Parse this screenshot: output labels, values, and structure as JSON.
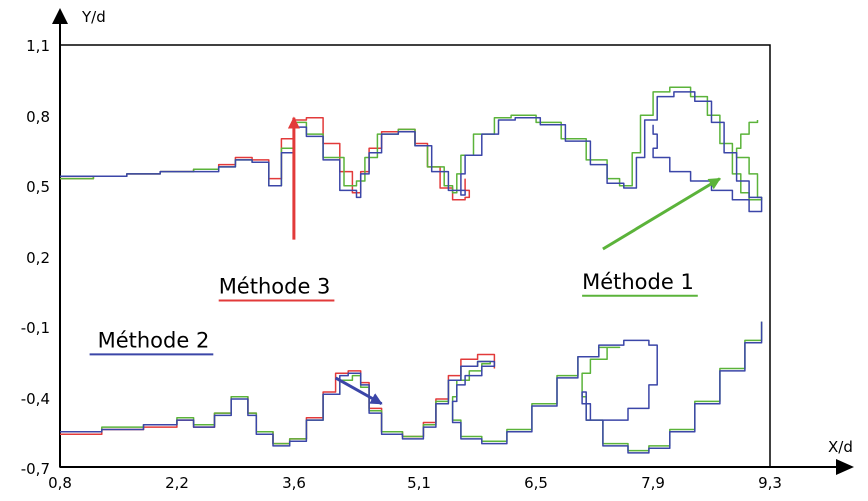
{
  "chart_data": {
    "type": "line",
    "xlabel": "X/d",
    "ylabel": "Y/d",
    "xlim": [
      0.8,
      9.3
    ],
    "ylim": [
      -0.7,
      1.1
    ],
    "x_ticks": [
      "0,8",
      "2,2",
      "3,6",
      "5,1",
      "6,5",
      "7,9",
      "9,3"
    ],
    "x_tick_values": [
      0.8,
      2.2,
      3.6,
      5.1,
      6.5,
      7.9,
      9.3
    ],
    "y_ticks": [
      "1,1",
      "0,8",
      "0,5",
      "0,2",
      "-0,1",
      "-0,4",
      "-0,7"
    ],
    "y_tick_values": [
      1.1,
      0.8,
      0.5,
      0.2,
      -0.1,
      -0.4,
      -0.7
    ],
    "grid": false,
    "series": [
      {
        "name": "Méthode 1",
        "color": "#5bb33a",
        "upper": [
          [
            0.8,
            0.53
          ],
          [
            1.2,
            0.54
          ],
          [
            1.6,
            0.55
          ],
          [
            2.0,
            0.56
          ],
          [
            2.4,
            0.57
          ],
          [
            2.7,
            0.58
          ],
          [
            2.9,
            0.61
          ],
          [
            3.1,
            0.6
          ],
          [
            3.3,
            0.5
          ],
          [
            3.45,
            0.66
          ],
          [
            3.6,
            0.77
          ],
          [
            3.75,
            0.72
          ],
          [
            3.95,
            0.62
          ],
          [
            4.2,
            0.5
          ],
          [
            4.35,
            0.52
          ],
          [
            4.45,
            0.62
          ],
          [
            4.6,
            0.72
          ],
          [
            4.85,
            0.74
          ],
          [
            5.05,
            0.67
          ],
          [
            5.2,
            0.58
          ],
          [
            5.4,
            0.5
          ],
          [
            5.5,
            0.47
          ],
          [
            5.55,
            0.55
          ],
          [
            5.6,
            0.63
          ],
          [
            5.75,
            0.72
          ],
          [
            6.0,
            0.79
          ],
          [
            6.2,
            0.8
          ],
          [
            6.5,
            0.77
          ],
          [
            6.8,
            0.7
          ],
          [
            7.1,
            0.61
          ],
          [
            7.35,
            0.53
          ],
          [
            7.5,
            0.5
          ],
          [
            7.65,
            0.64
          ],
          [
            7.75,
            0.8
          ],
          [
            7.9,
            0.9
          ],
          [
            8.1,
            0.92
          ],
          [
            8.35,
            0.88
          ],
          [
            8.55,
            0.8
          ],
          [
            8.7,
            0.68
          ],
          [
            8.85,
            0.55
          ],
          [
            8.95,
            0.47
          ],
          [
            9.05,
            0.44
          ],
          [
            9.2,
            0.45
          ],
          [
            9.15,
            0.55
          ],
          [
            9.05,
            0.62
          ],
          [
            8.9,
            0.66
          ],
          [
            8.95,
            0.72
          ],
          [
            9.05,
            0.77
          ],
          [
            9.15,
            0.78
          ]
        ],
        "lower": [
          [
            0.8,
            -0.55
          ],
          [
            1.3,
            -0.53
          ],
          [
            1.8,
            -0.52
          ],
          [
            2.2,
            -0.49
          ],
          [
            2.4,
            -0.52
          ],
          [
            2.65,
            -0.47
          ],
          [
            2.85,
            -0.4
          ],
          [
            3.05,
            -0.47
          ],
          [
            3.15,
            -0.55
          ],
          [
            3.35,
            -0.6
          ],
          [
            3.55,
            -0.58
          ],
          [
            3.75,
            -0.5
          ],
          [
            3.95,
            -0.39
          ],
          [
            4.15,
            -0.33
          ],
          [
            4.3,
            -0.31
          ],
          [
            4.4,
            -0.36
          ],
          [
            4.5,
            -0.46
          ],
          [
            4.65,
            -0.55
          ],
          [
            4.9,
            -0.57
          ],
          [
            5.15,
            -0.52
          ],
          [
            5.3,
            -0.42
          ],
          [
            5.45,
            -0.33
          ],
          [
            5.6,
            -0.27
          ],
          [
            5.8,
            -0.25
          ],
          [
            5.95,
            -0.26
          ],
          [
            5.85,
            -0.29
          ],
          [
            5.7,
            -0.33
          ],
          [
            5.55,
            -0.4
          ],
          [
            5.5,
            -0.5
          ],
          [
            5.6,
            -0.57
          ],
          [
            5.85,
            -0.59
          ],
          [
            6.15,
            -0.54
          ],
          [
            6.45,
            -0.43
          ],
          [
            6.75,
            -0.31
          ],
          [
            7.0,
            -0.23
          ],
          [
            7.25,
            -0.19
          ],
          [
            7.5,
            -0.19
          ],
          [
            7.35,
            -0.24
          ],
          [
            7.15,
            -0.3
          ],
          [
            7.05,
            -0.4
          ],
          [
            7.1,
            -0.5
          ],
          [
            7.3,
            -0.6
          ],
          [
            7.6,
            -0.63
          ],
          [
            7.85,
            -0.61
          ],
          [
            8.1,
            -0.54
          ],
          [
            8.4,
            -0.42
          ],
          [
            8.7,
            -0.28
          ],
          [
            9.0,
            -0.16
          ],
          [
            9.2,
            -0.08
          ]
        ]
      },
      {
        "name": "Méthode 2",
        "color": "#3b46a8",
        "upper": [
          [
            0.8,
            0.54
          ],
          [
            1.2,
            0.54
          ],
          [
            1.6,
            0.55
          ],
          [
            2.0,
            0.56
          ],
          [
            2.4,
            0.56
          ],
          [
            2.7,
            0.58
          ],
          [
            2.9,
            0.61
          ],
          [
            3.1,
            0.6
          ],
          [
            3.3,
            0.5
          ],
          [
            3.45,
            0.64
          ],
          [
            3.6,
            0.75
          ],
          [
            3.75,
            0.71
          ],
          [
            3.95,
            0.61
          ],
          [
            4.15,
            0.48
          ],
          [
            4.35,
            0.45
          ],
          [
            4.4,
            0.55
          ],
          [
            4.5,
            0.64
          ],
          [
            4.65,
            0.72
          ],
          [
            4.85,
            0.73
          ],
          [
            5.05,
            0.67
          ],
          [
            5.25,
            0.56
          ],
          [
            5.45,
            0.48
          ],
          [
            5.65,
            0.46
          ],
          [
            5.6,
            0.55
          ],
          [
            5.65,
            0.63
          ],
          [
            5.85,
            0.72
          ],
          [
            6.05,
            0.78
          ],
          [
            6.25,
            0.79
          ],
          [
            6.55,
            0.76
          ],
          [
            6.85,
            0.69
          ],
          [
            7.15,
            0.59
          ],
          [
            7.35,
            0.51
          ],
          [
            7.55,
            0.49
          ],
          [
            7.7,
            0.62
          ],
          [
            7.8,
            0.78
          ],
          [
            7.95,
            0.88
          ],
          [
            8.15,
            0.9
          ],
          [
            8.4,
            0.86
          ],
          [
            8.6,
            0.77
          ],
          [
            8.75,
            0.64
          ],
          [
            8.9,
            0.52
          ],
          [
            9.05,
            0.45
          ],
          [
            9.2,
            0.39
          ],
          [
            9.05,
            0.44
          ],
          [
            8.85,
            0.48
          ],
          [
            8.6,
            0.52
          ],
          [
            8.35,
            0.56
          ],
          [
            8.1,
            0.62
          ],
          [
            7.9,
            0.66
          ],
          [
            7.95,
            0.72
          ],
          [
            7.9,
            0.76
          ]
        ],
        "lower": [
          [
            0.8,
            -0.55
          ],
          [
            1.3,
            -0.54
          ],
          [
            1.8,
            -0.52
          ],
          [
            2.2,
            -0.5
          ],
          [
            2.4,
            -0.53
          ],
          [
            2.65,
            -0.48
          ],
          [
            2.85,
            -0.41
          ],
          [
            3.05,
            -0.48
          ],
          [
            3.15,
            -0.56
          ],
          [
            3.35,
            -0.61
          ],
          [
            3.55,
            -0.59
          ],
          [
            3.75,
            -0.5
          ],
          [
            3.95,
            -0.39
          ],
          [
            4.15,
            -0.31
          ],
          [
            4.25,
            -0.3
          ],
          [
            4.4,
            -0.35
          ],
          [
            4.5,
            -0.47
          ],
          [
            4.65,
            -0.56
          ],
          [
            4.9,
            -0.58
          ],
          [
            5.15,
            -0.53
          ],
          [
            5.3,
            -0.43
          ],
          [
            5.45,
            -0.33
          ],
          [
            5.6,
            -0.27
          ],
          [
            5.8,
            -0.25
          ],
          [
            6.0,
            -0.27
          ],
          [
            5.85,
            -0.31
          ],
          [
            5.65,
            -0.35
          ],
          [
            5.55,
            -0.42
          ],
          [
            5.5,
            -0.51
          ],
          [
            5.6,
            -0.58
          ],
          [
            5.85,
            -0.6
          ],
          [
            6.15,
            -0.55
          ],
          [
            6.45,
            -0.44
          ],
          [
            6.75,
            -0.32
          ],
          [
            7.0,
            -0.23
          ],
          [
            7.25,
            -0.18
          ],
          [
            7.55,
            -0.16
          ],
          [
            7.85,
            -0.18
          ],
          [
            7.95,
            -0.25
          ],
          [
            7.95,
            -0.35
          ],
          [
            7.85,
            -0.45
          ],
          [
            7.6,
            -0.5
          ],
          [
            7.35,
            -0.5
          ],
          [
            7.15,
            -0.43
          ],
          [
            7.05,
            -0.38
          ],
          [
            7.1,
            -0.5
          ],
          [
            7.3,
            -0.61
          ],
          [
            7.6,
            -0.64
          ],
          [
            7.85,
            -0.62
          ],
          [
            8.1,
            -0.55
          ],
          [
            8.4,
            -0.43
          ],
          [
            8.7,
            -0.29
          ],
          [
            9.0,
            -0.17
          ],
          [
            9.2,
            -0.08
          ]
        ]
      },
      {
        "name": "Méthode 3",
        "color": "#e23a3a",
        "upper": [
          [
            0.8,
            0.53
          ],
          [
            1.2,
            0.54
          ],
          [
            1.6,
            0.55
          ],
          [
            2.0,
            0.56
          ],
          [
            2.4,
            0.57
          ],
          [
            2.7,
            0.59
          ],
          [
            2.9,
            0.62
          ],
          [
            3.1,
            0.61
          ],
          [
            3.3,
            0.53
          ],
          [
            3.45,
            0.7
          ],
          [
            3.6,
            0.78
          ],
          [
            3.75,
            0.79
          ],
          [
            3.95,
            0.68
          ],
          [
            4.15,
            0.56
          ],
          [
            4.3,
            0.47
          ],
          [
            4.4,
            0.56
          ],
          [
            4.5,
            0.66
          ],
          [
            4.65,
            0.73
          ],
          [
            4.85,
            0.74
          ],
          [
            5.05,
            0.68
          ],
          [
            5.2,
            0.58
          ],
          [
            5.35,
            0.49
          ],
          [
            5.5,
            0.44
          ],
          [
            5.65,
            0.45
          ],
          [
            5.7,
            0.48
          ],
          [
            5.65,
            0.53
          ]
        ],
        "lower": [
          [
            0.8,
            -0.56
          ],
          [
            1.3,
            -0.54
          ],
          [
            1.8,
            -0.53
          ],
          [
            2.2,
            -0.5
          ],
          [
            2.4,
            -0.53
          ],
          [
            2.65,
            -0.47
          ],
          [
            2.85,
            -0.4
          ],
          [
            3.05,
            -0.47
          ],
          [
            3.15,
            -0.55
          ],
          [
            3.35,
            -0.6
          ],
          [
            3.55,
            -0.58
          ],
          [
            3.75,
            -0.49
          ],
          [
            3.95,
            -0.38
          ],
          [
            4.1,
            -0.3
          ],
          [
            4.25,
            -0.29
          ],
          [
            4.4,
            -0.34
          ],
          [
            4.5,
            -0.45
          ],
          [
            4.65,
            -0.55
          ],
          [
            4.9,
            -0.57
          ],
          [
            5.15,
            -0.51
          ],
          [
            5.3,
            -0.41
          ],
          [
            5.45,
            -0.31
          ],
          [
            5.6,
            -0.24
          ],
          [
            5.8,
            -0.22
          ],
          [
            6.0,
            -0.23
          ],
          [
            6.0,
            -0.28
          ]
        ]
      }
    ],
    "annotations": [
      {
        "text": "Méthode 1",
        "color": "#5bb33a",
        "x": 7.05,
        "y": 0.06,
        "arrow_from": [
          7.3,
          0.23
        ],
        "arrow_to": [
          8.7,
          0.53
        ]
      },
      {
        "text": "Méthode 2",
        "color": "#3b46a8",
        "x": 1.25,
        "y": -0.19,
        "arrow_from": [
          4.1,
          -0.32
        ],
        "arrow_to": [
          4.65,
          -0.43
        ]
      },
      {
        "text": "Méthode 3",
        "color": "#e23a3a",
        "x": 2.7,
        "y": 0.04,
        "arrow_from": [
          3.6,
          0.27
        ],
        "arrow_to": [
          3.6,
          0.79
        ]
      }
    ]
  }
}
